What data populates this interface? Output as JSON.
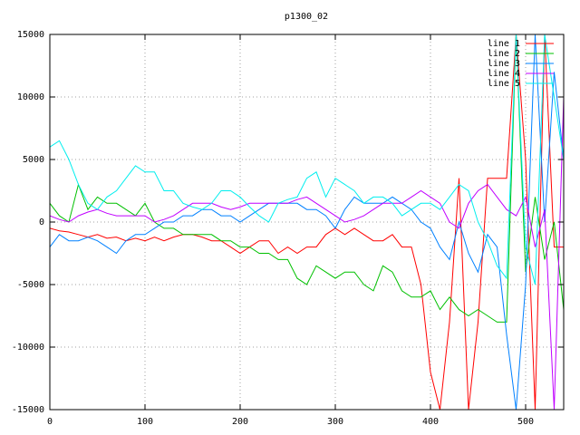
{
  "chart_data": {
    "type": "line",
    "title": "p1300_02",
    "x": [
      0,
      10,
      20,
      30,
      40,
      50,
      60,
      70,
      80,
      90,
      100,
      110,
      120,
      130,
      140,
      150,
      160,
      170,
      180,
      190,
      200,
      210,
      220,
      230,
      240,
      250,
      260,
      270,
      280,
      290,
      300,
      310,
      320,
      330,
      340,
      350,
      360,
      370,
      380,
      390,
      400,
      410,
      420,
      430,
      440,
      450,
      460,
      470,
      480,
      490,
      500,
      510,
      520,
      530,
      540
    ],
    "series": [
      {
        "name": "line 1",
        "color": "#ff0000",
        "values": [
          -500,
          -700,
          -800,
          -1000,
          -1200,
          -1000,
          -1300,
          -1200,
          -1500,
          -1300,
          -1500,
          -1200,
          -1500,
          -1200,
          -1000,
          -1000,
          -1200,
          -1500,
          -1500,
          -2000,
          -2500,
          -2000,
          -1500,
          -1500,
          -2500,
          -2000,
          -2500,
          -2000,
          -2000,
          -1000,
          -500,
          -1000,
          -500,
          -1000,
          -1500,
          -1500,
          -1000,
          -2000,
          -2000,
          -5000,
          -12000,
          -15000,
          -8000,
          3500,
          -15000,
          -8000,
          3500,
          3500,
          3500,
          15000,
          5000,
          -15000,
          15000,
          -2000,
          -2000
        ]
      },
      {
        "name": "line 2",
        "color": "#00c000",
        "values": [
          1500,
          500,
          0,
          3000,
          1000,
          2000,
          1500,
          1500,
          1000,
          500,
          1500,
          0,
          -500,
          -500,
          -1000,
          -1000,
          -1000,
          -1000,
          -1500,
          -1500,
          -2000,
          -2000,
          -2500,
          -2500,
          -3000,
          -3000,
          -4500,
          -5000,
          -3500,
          -4000,
          -4500,
          -4000,
          -4000,
          -5000,
          -5500,
          -3500,
          -4000,
          -5500,
          -6000,
          -6000,
          -5500,
          -7000,
          -6000,
          -7000,
          -7500,
          -7000,
          -7500,
          -8000,
          -8000,
          15000,
          -4000,
          2000,
          -3000,
          0,
          -7000
        ]
      },
      {
        "name": "line 3",
        "color": "#0080ff",
        "values": [
          -2000,
          -1000,
          -1500,
          -1500,
          -1200,
          -1500,
          -2000,
          -2500,
          -1500,
          -1000,
          -1000,
          -500,
          0,
          0,
          500,
          500,
          1000,
          1000,
          500,
          500,
          0,
          500,
          1000,
          1500,
          1500,
          1500,
          1500,
          1000,
          1000,
          500,
          -500,
          1000,
          2000,
          1500,
          1500,
          1500,
          2000,
          1500,
          1000,
          0,
          -500,
          -2000,
          -3000,
          0,
          -2500,
          -4000,
          -1000,
          -2000,
          -9000,
          -15000,
          -5000,
          15000,
          0,
          12000,
          5000
        ]
      },
      {
        "name": "line 4",
        "color": "#c000ff",
        "values": [
          500,
          200,
          0,
          500,
          800,
          1000,
          700,
          500,
          500,
          500,
          500,
          0,
          200,
          500,
          1000,
          1500,
          1500,
          1500,
          1200,
          1000,
          1200,
          1500,
          1500,
          1500,
          1500,
          1500,
          1800,
          2000,
          1500,
          1000,
          500,
          0,
          200,
          500,
          1000,
          1500,
          1500,
          1500,
          2000,
          2500,
          2000,
          1500,
          0,
          -500,
          1500,
          2500,
          3000,
          2000,
          1000,
          500,
          2000,
          -2000,
          1000,
          -15000,
          10000
        ]
      },
      {
        "name": "line 5",
        "color": "#00eeee",
        "values": [
          6000,
          6500,
          5000,
          3000,
          1500,
          1000,
          2000,
          2500,
          3500,
          4500,
          4000,
          4000,
          2500,
          2500,
          1500,
          1200,
          1000,
          1500,
          2500,
          2500,
          2000,
          1200,
          500,
          0,
          1500,
          1800,
          2000,
          3500,
          4000,
          2000,
          3500,
          3000,
          2500,
          1500,
          2000,
          2000,
          1500,
          500,
          1000,
          1500,
          1500,
          1000,
          2000,
          3000,
          2500,
          0,
          -1500,
          -3500,
          -4500,
          15000,
          -2000,
          -5000,
          15000,
          10000,
          5000
        ]
      }
    ],
    "xlim": [
      0,
      540
    ],
    "ylim": [
      -15000,
      15000
    ],
    "xticks": [
      0,
      100,
      200,
      300,
      400,
      500
    ],
    "yticks": [
      -15000,
      -10000,
      -5000,
      0,
      5000,
      10000,
      15000
    ],
    "grid": true,
    "legend": "top-right"
  }
}
